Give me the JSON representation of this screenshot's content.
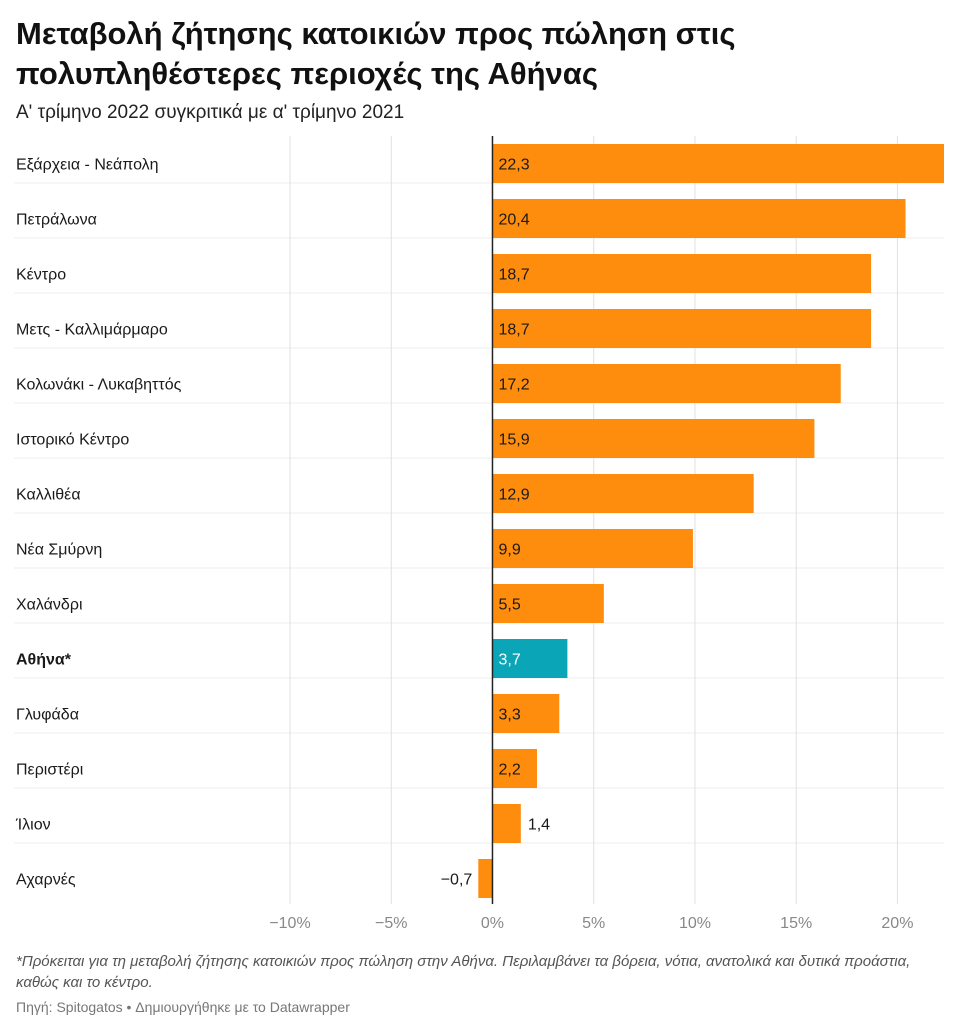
{
  "header": {
    "title": "Μεταβολή ζήτησης κατοικιών προς πώληση στις πολυπληθέστερες περιοχές της Αθήνας",
    "subtitle": "Α' τρίμηνο 2022 συγκριτικά με α' τρίμηνο 2021"
  },
  "notes": "*Πρόκειται για τη μεταβολή ζήτησης κατοικιών προς πώληση στην Αθήνα. Περιλαμβάνει τα βόρεια, νότια, ανατολικά και δυτικά προάστια, καθώς και το κέντρο.",
  "footer": "Πηγή: Spitogatos • Δημιουργήθηκε με το Datawrapper",
  "colors": {
    "bar": "#fe8c0d",
    "highlight": "#0aa5b6",
    "grid": "#e0e0e0",
    "zero_line": "#222222"
  },
  "chart_data": {
    "type": "bar",
    "orientation": "horizontal",
    "title": "Μεταβολή ζήτησης κατοικιών προς πώληση στις πολυπληθέστερες περιοχές της Αθήνας",
    "subtitle": "Α' τρίμηνο 2022 συγκριτικά με α' τρίμηνο 2021",
    "categories": [
      "Εξάρχεια - Νεάπολη",
      "Πετράλωνα",
      "Κέντρο",
      "Μετς - Καλλιμάρμαρο",
      "Κολωνάκι - Λυκαβηττός",
      "Ιστορικό Κέντρο",
      "Καλλιθέα",
      "Νέα Σμύρνη",
      "Χαλάνδρι",
      "Αθήνα*",
      "Γλυφάδα",
      "Περιστέρι",
      "Ίλιον",
      "Αχαρνές"
    ],
    "values": [
      22.3,
      20.4,
      18.7,
      18.7,
      17.2,
      15.9,
      12.9,
      9.9,
      5.5,
      3.7,
      3.3,
      2.2,
      1.4,
      -0.7
    ],
    "value_labels": [
      "22,3",
      "20,4",
      "18,7",
      "18,7",
      "17,2",
      "15,9",
      "12,9",
      "9,9",
      "5,5",
      "3,7",
      "3,3",
      "2,2",
      "1,4",
      "−0,7"
    ],
    "highlight": [
      "Αθήνα*"
    ],
    "x_ticks": [
      -10,
      -5,
      0,
      5,
      10,
      15,
      20
    ],
    "x_tick_labels": [
      "−10%",
      "−5%",
      "0%",
      "5%",
      "10%",
      "15%",
      "20%"
    ],
    "xlim": [
      -10,
      22.3
    ],
    "grid": true,
    "xlabel": "",
    "ylabel": ""
  }
}
